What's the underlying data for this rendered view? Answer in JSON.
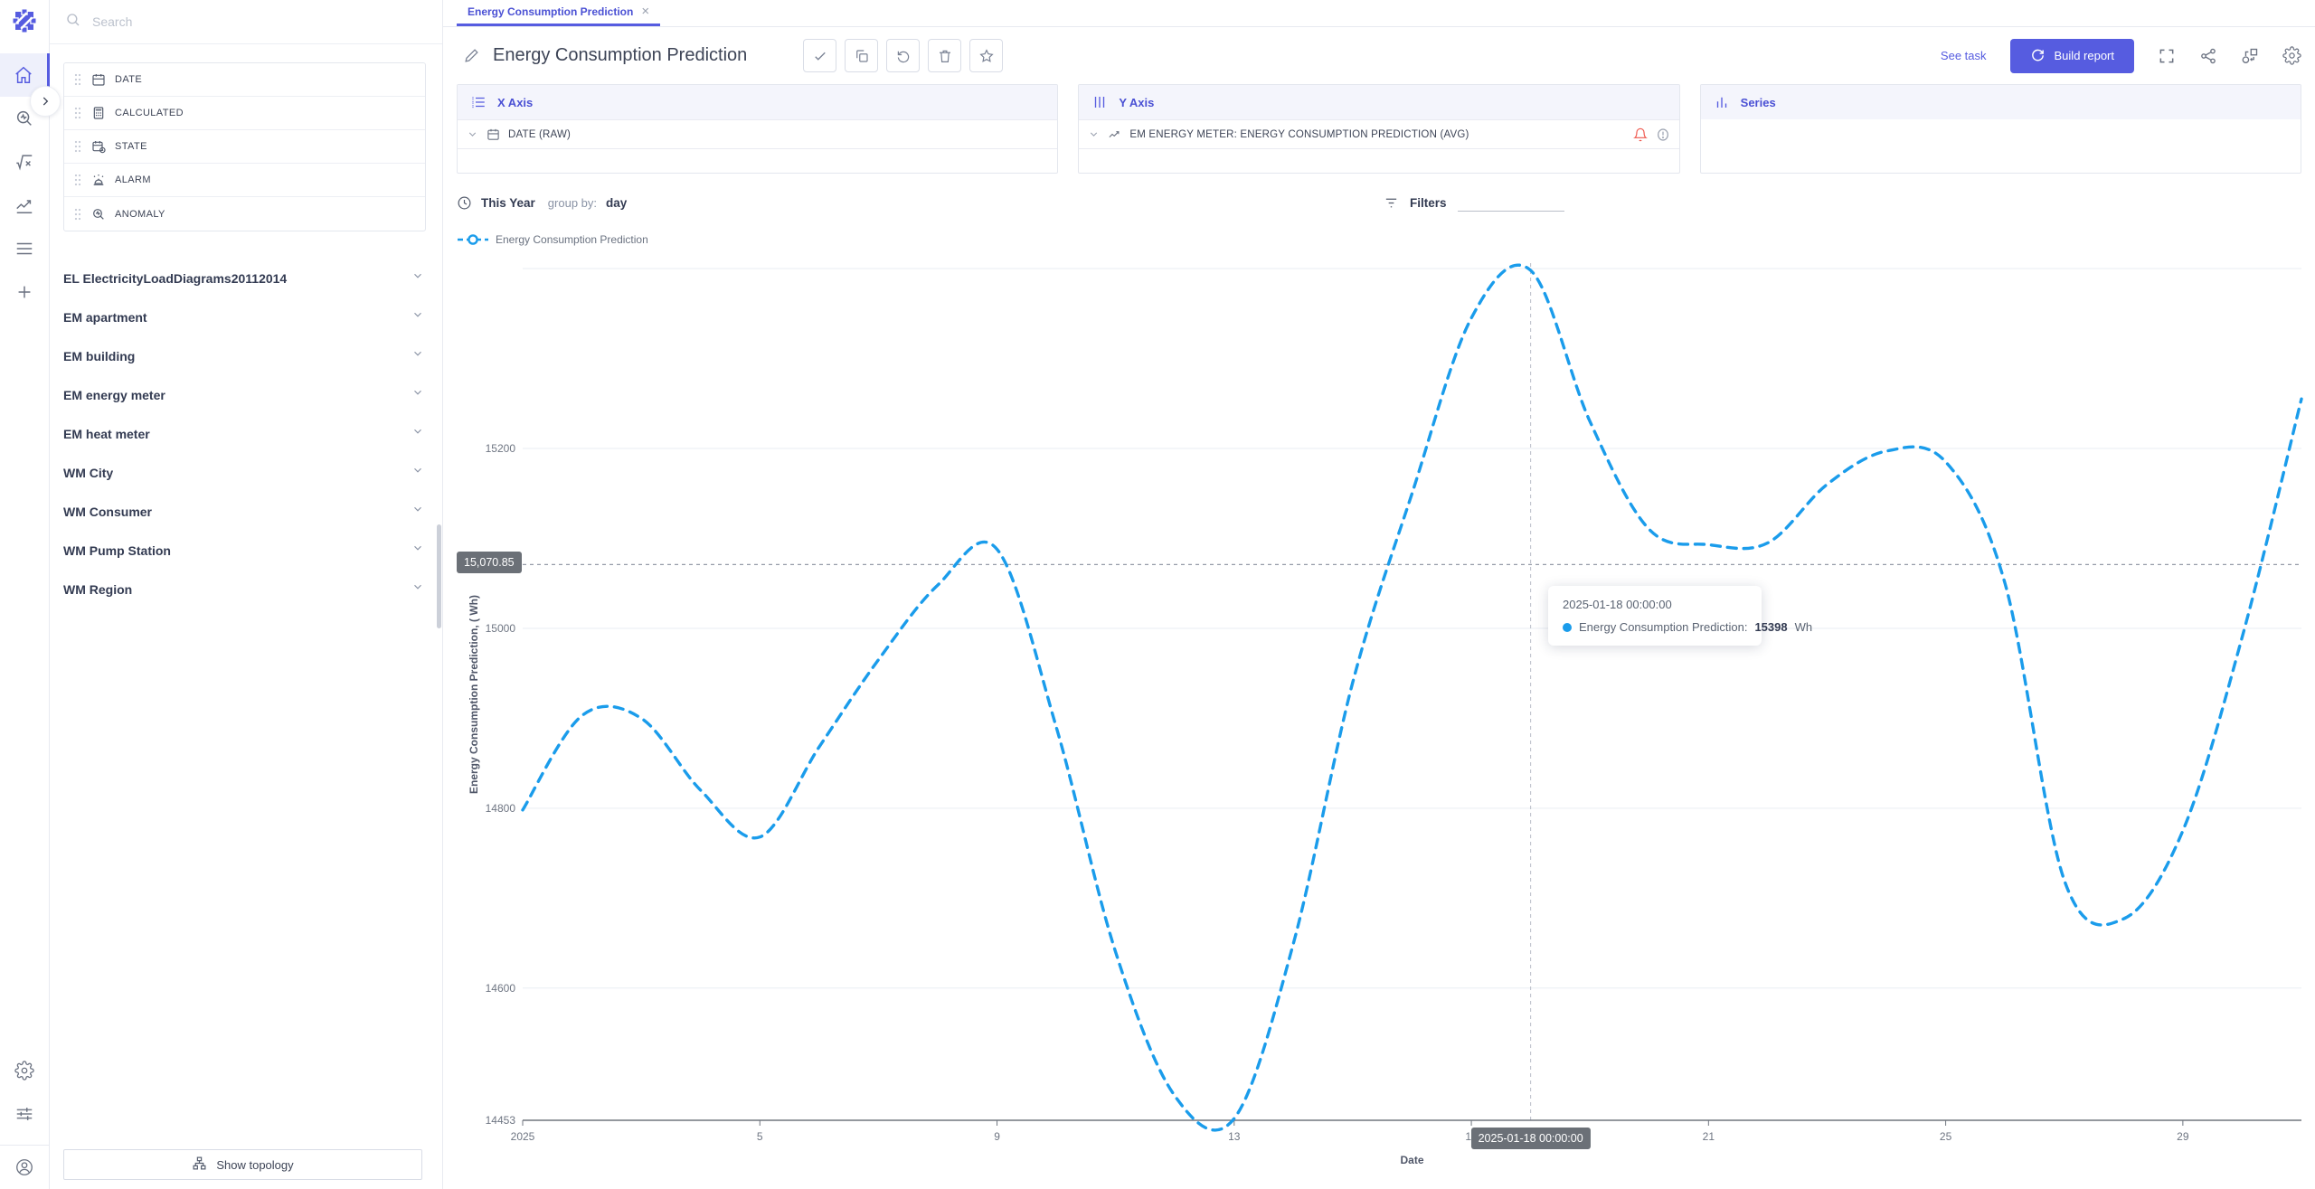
{
  "app": {
    "tab_label": "Energy Consumption Prediction",
    "tab_close": "×",
    "page_title": "Energy Consumption Prediction",
    "see_task": "See task",
    "build_report": "Build report"
  },
  "sidebar": {
    "search_placeholder": "Search",
    "fields": [
      {
        "label": "DATE",
        "icon": "calendar-icon"
      },
      {
        "label": "CALCULATED",
        "icon": "calculator-icon"
      },
      {
        "label": "STATE",
        "icon": "calendar-clock-icon"
      },
      {
        "label": "ALARM",
        "icon": "alarm-icon"
      },
      {
        "label": "ANOMALY",
        "icon": "anomaly-search-icon"
      }
    ],
    "groups": [
      "EL ElectricityLoadDiagrams20112014",
      "EM apartment",
      "EM building",
      "EM energy meter",
      "EM heat meter",
      "WM City",
      "WM Consumer",
      "WM Pump Station",
      "WM Region"
    ],
    "show_topology": "Show topology"
  },
  "panels": {
    "x_axis": {
      "title": "X Axis",
      "field": "DATE (RAW)"
    },
    "y_axis": {
      "title": "Y Axis",
      "field": "EM ENERGY METER: ENERGY CONSUMPTION PREDICTION (AVG)"
    },
    "series": {
      "title": "Series"
    }
  },
  "chart": {
    "time_range": "This Year",
    "group_by_label": "group by:",
    "group_by_value": "day",
    "filters_label": "Filters",
    "legend": "Energy Consumption Prediction",
    "threshold_label": "15,070.85",
    "crosshair_label": "2025-01-18 00:00:00",
    "tooltip": {
      "date": "2025-01-18 00:00:00",
      "series_label": "Energy Consumption Prediction:",
      "value": "15398",
      "unit": "Wh"
    }
  },
  "chart_data": {
    "type": "line",
    "title": "Energy Consumption Prediction",
    "series_name": "Energy Consumption Prediction",
    "xlabel": "Date",
    "ylabel": "Energy Consumption Prediction, ( Wh)",
    "x_days_january_2025": [
      1,
      2,
      3,
      4,
      5,
      6,
      7,
      8,
      9,
      10,
      11,
      12,
      13,
      14,
      15,
      16,
      17,
      18,
      19,
      20,
      21,
      22,
      23,
      24,
      25,
      26,
      27,
      28,
      29,
      30,
      31
    ],
    "values": [
      14798,
      14903,
      14900,
      14820,
      14768,
      14868,
      14965,
      15048,
      15088,
      14890,
      14640,
      14480,
      14455,
      14650,
      14940,
      15150,
      15345,
      15398,
      15230,
      15110,
      15093,
      15095,
      15160,
      15197,
      15185,
      15050,
      14720,
      14677,
      14775,
      14990,
      15255
    ],
    "x_tick_days": [
      1,
      5,
      9,
      13,
      17,
      21,
      25,
      29
    ],
    "x_tick_labels": [
      "2025",
      "5",
      "9",
      "13",
      "17",
      "21",
      "25",
      "29"
    ],
    "y_ticks": [
      15200,
      15000,
      14800,
      14600,
      14453
    ],
    "gridline_values": [
      15400,
      15200,
      15000,
      14800,
      14600
    ],
    "ylim": [
      14453,
      15400
    ],
    "threshold_value": 15070.85,
    "highlight_point": {
      "date": "2025-01-18 00:00:00",
      "day": 18,
      "value": 15398,
      "unit": "Wh"
    },
    "line_color": "#1a9ceb",
    "line_style": "dashed",
    "smooth": true,
    "grid": true,
    "legend_position": "top-left"
  }
}
